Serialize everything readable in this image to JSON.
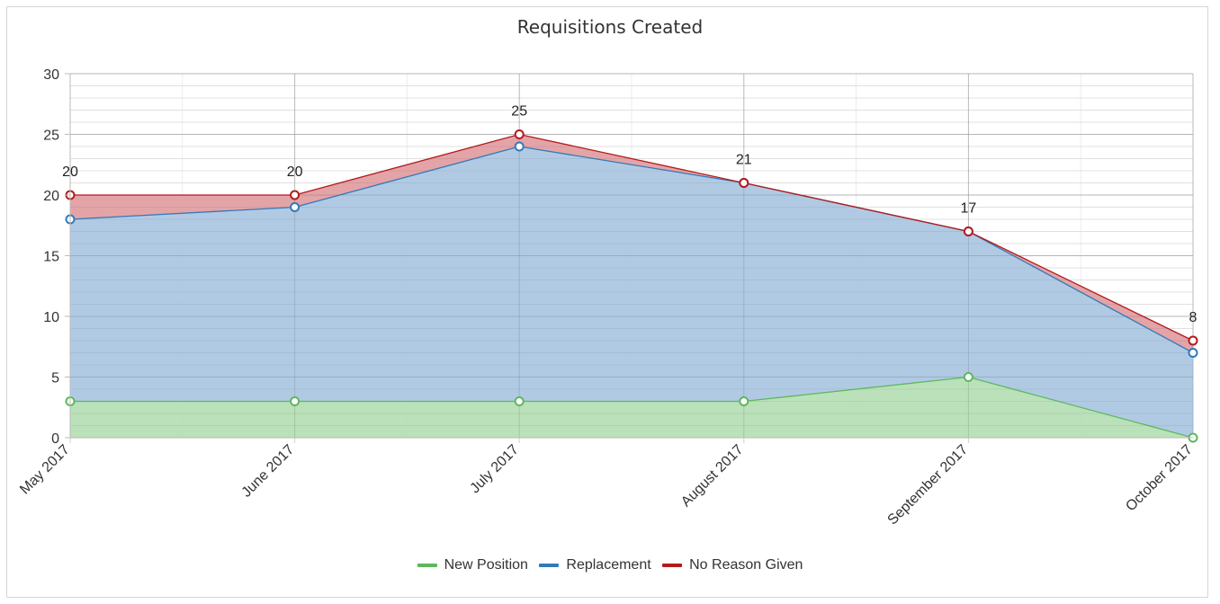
{
  "chart_data": {
    "type": "area",
    "title": "Requisitions Created",
    "categories": [
      "May 2017",
      "June 2017",
      "July 2017",
      "August 2017",
      "September 2017",
      "October 2017"
    ],
    "stacked": true,
    "ylim": [
      0,
      30
    ],
    "yticks": [
      0,
      5,
      10,
      15,
      20,
      25,
      30
    ],
    "grid": true,
    "legend_position": "bottom",
    "series": [
      {
        "name": "New Position",
        "values": [
          3,
          3,
          3,
          3,
          5,
          0
        ],
        "color": "#5cb85c",
        "fill": "#b3deb3"
      },
      {
        "name": "Replacement",
        "values": [
          15,
          16,
          21,
          18,
          12,
          7
        ],
        "color": "#337ab7",
        "fill": "#a8c4e0"
      },
      {
        "name": "No Reason Given",
        "values": [
          2,
          1,
          1,
          0,
          0,
          1
        ],
        "color": "#b31b1b",
        "fill": "#e09a9e"
      }
    ],
    "totals": [
      20,
      20,
      25,
      21,
      17,
      8
    ]
  }
}
